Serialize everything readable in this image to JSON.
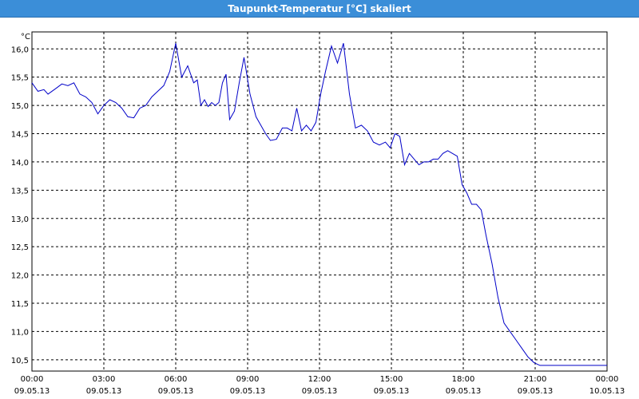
{
  "window": {
    "title": "Taupunkt-Temperatur [°C] skaliert"
  },
  "colors": {
    "titlebar": "#3b8ed8",
    "line": "#0000c8",
    "grid": "#000000"
  },
  "chart_data": {
    "type": "line",
    "title": "Taupunkt-Temperatur [°C] skaliert",
    "ylabel": "°C",
    "ylim": [
      10.3,
      16.3
    ],
    "grid": true,
    "y_ticks": [
      "10,5",
      "11,0",
      "11,5",
      "12,0",
      "12,5",
      "13,0",
      "13,5",
      "14,0",
      "14,5",
      "15,0",
      "15,5",
      "16,0"
    ],
    "y_tick_values": [
      10.5,
      11.0,
      11.5,
      12.0,
      12.5,
      13.0,
      13.5,
      14.0,
      14.5,
      15.0,
      15.5,
      16.0
    ],
    "x_ticks": [
      {
        "time": "00:00",
        "date": "09.05.13"
      },
      {
        "time": "03:00",
        "date": "09.05.13"
      },
      {
        "time": "06:00",
        "date": "09.05.13"
      },
      {
        "time": "09:00",
        "date": "09.05.13"
      },
      {
        "time": "12:00",
        "date": "09.05.13"
      },
      {
        "time": "15:00",
        "date": "09.05.13"
      },
      {
        "time": "18:00",
        "date": "09.05.13"
      },
      {
        "time": "21:00",
        "date": "09.05.13"
      },
      {
        "time": "00:00",
        "date": "10.05.13"
      }
    ],
    "x_tick_hours": [
      0,
      3,
      6,
      9,
      12,
      15,
      18,
      21,
      24
    ],
    "series": [
      {
        "x_hours": [
          0.0,
          0.25,
          0.5,
          0.67,
          1.0,
          1.25,
          1.5,
          1.75,
          2.0,
          2.25,
          2.5,
          2.75,
          3.0,
          3.25,
          3.5,
          3.75,
          4.0,
          4.25,
          4.5,
          4.75,
          5.0,
          5.25,
          5.5,
          5.75,
          6.0,
          6.25,
          6.5,
          6.75,
          6.9,
          7.05,
          7.2,
          7.35,
          7.5,
          7.65,
          7.8,
          7.95,
          8.1,
          8.25,
          8.45,
          8.65,
          8.85,
          9.1,
          9.35,
          9.55,
          9.75,
          9.95,
          10.2,
          10.45,
          10.65,
          10.85,
          11.05,
          11.25,
          11.45,
          11.65,
          11.85,
          12.05,
          12.25,
          12.5,
          12.75,
          13.0,
          13.25,
          13.5,
          13.75,
          14.0,
          14.25,
          14.5,
          14.75,
          14.95,
          15.15,
          15.35,
          15.55,
          15.75,
          15.95,
          16.15,
          16.35,
          16.55,
          16.75,
          16.95,
          17.15,
          17.35,
          17.55,
          17.75,
          17.95,
          18.15,
          18.35,
          18.55,
          18.75,
          18.95,
          19.2,
          19.45,
          19.7,
          19.95,
          20.2,
          20.45,
          20.7,
          20.95,
          21.2,
          21.45,
          21.7,
          21.95,
          22.2,
          22.45,
          22.7,
          22.95,
          23.2,
          23.45,
          23.7,
          23.85,
          24.0
        ],
        "values": [
          15.4,
          15.25,
          15.28,
          15.2,
          15.3,
          15.38,
          15.35,
          15.4,
          15.2,
          15.15,
          15.05,
          14.85,
          15.0,
          15.1,
          15.05,
          14.95,
          14.8,
          14.78,
          14.95,
          15.0,
          15.15,
          15.25,
          15.35,
          15.6,
          16.1,
          15.5,
          15.7,
          15.4,
          15.45,
          15.0,
          15.1,
          14.98,
          15.05,
          15.0,
          15.05,
          15.4,
          15.55,
          14.75,
          14.9,
          15.4,
          15.85,
          15.2,
          14.8,
          14.65,
          14.5,
          14.38,
          14.4,
          14.6,
          14.6,
          14.55,
          14.95,
          14.55,
          14.65,
          14.55,
          14.7,
          15.2,
          15.6,
          16.05,
          15.75,
          16.1,
          15.2,
          14.6,
          14.65,
          14.55,
          14.35,
          14.3,
          14.35,
          14.25,
          14.5,
          14.45,
          13.95,
          14.15,
          14.05,
          13.95,
          14.0,
          14.0,
          14.05,
          14.05,
          14.15,
          14.2,
          14.15,
          14.1,
          13.6,
          13.45,
          13.25,
          13.25,
          13.15,
          12.7,
          12.2,
          11.6,
          11.15,
          11.0,
          10.85,
          10.7,
          10.55,
          10.45,
          10.4,
          10.4,
          10.4,
          10.4,
          10.4,
          10.4,
          10.4,
          10.4,
          10.4,
          10.4,
          10.4,
          10.4,
          10.4
        ]
      }
    ]
  }
}
